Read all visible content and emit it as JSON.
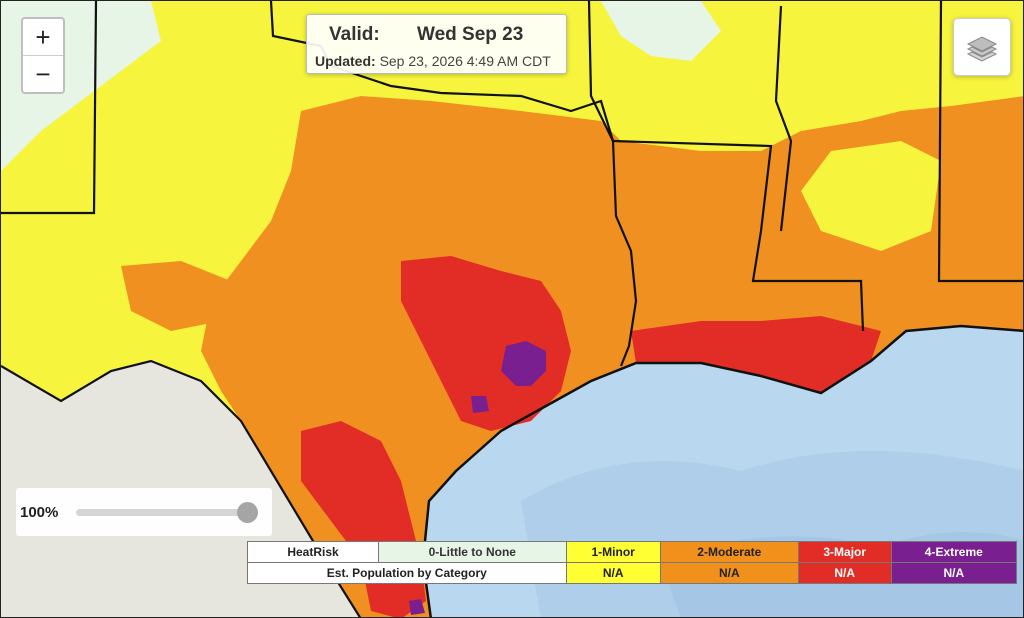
{
  "map": {
    "colors": {
      "little_to_none": "#e7f5e6",
      "minor": "#f6f43c",
      "moderate": "#f09020",
      "major": "#e22d26",
      "extreme": "#7a1f8f",
      "water": "#b9d7ee",
      "land_base": "#eceae4"
    }
  },
  "zoom": {
    "in_label": "+",
    "out_label": "−"
  },
  "valid": {
    "label": "Valid:",
    "date": "Wed  Sep 23",
    "updated_label": "Updated:",
    "updated_value": "Sep 23, 2026 4:49 AM CDT"
  },
  "layers": {
    "icon": "layers-icon"
  },
  "opacity": {
    "value": "100%",
    "level": 1.0
  },
  "legend": {
    "row1_label": "HeatRisk",
    "row2_label": "Est. Population by Category",
    "categories": [
      {
        "name": "0-Little to None",
        "population": ""
      },
      {
        "name": "1-Minor",
        "population": "N/A"
      },
      {
        "name": "2-Moderate",
        "population": "N/A"
      },
      {
        "name": "3-Major",
        "population": "N/A"
      },
      {
        "name": "4-Extreme",
        "population": "N/A"
      }
    ]
  }
}
